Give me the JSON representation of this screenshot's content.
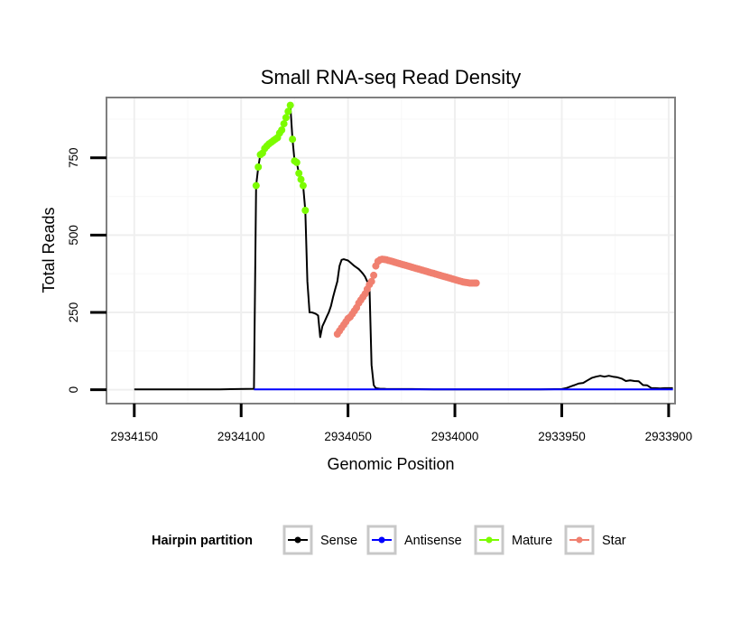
{
  "chart_data": {
    "type": "line",
    "title": "Small RNA-seq Read Density",
    "xlabel": "Genomic Position",
    "ylabel": "Total Reads",
    "xlim": [
      2934163,
      2933897
    ],
    "ylim": [
      -45,
      945
    ],
    "x_reversed": true,
    "grid": true,
    "x_ticks": [
      {
        "value": 2934150,
        "label": "2934150"
      },
      {
        "value": 2934100,
        "label": "2934100"
      },
      {
        "value": 2934050,
        "label": "2934050"
      },
      {
        "value": 2934000,
        "label": "2934000"
      },
      {
        "value": 2933950,
        "label": "2933950"
      },
      {
        "value": 2933900,
        "label": "2933900"
      }
    ],
    "y_ticks": [
      {
        "value": 0,
        "label": "0"
      },
      {
        "value": 250,
        "label": "250"
      },
      {
        "value": 500,
        "label": "500"
      },
      {
        "value": 750,
        "label": "750"
      }
    ],
    "legend": {
      "title": "Hairpin partition",
      "position": "bottom",
      "items": [
        {
          "label": "Sense",
          "color": "#000000"
        },
        {
          "label": "Antisense",
          "color": "#0000ff"
        },
        {
          "label": "Mature",
          "color": "#7cfc00"
        },
        {
          "label": "Star",
          "color": "#f08070"
        }
      ]
    },
    "series": [
      {
        "name": "Sense",
        "color": "#000000",
        "markers": false,
        "x": [
          2934150,
          2934130,
          2934110,
          2934094,
          2934093,
          2934092,
          2934091,
          2934090,
          2934089,
          2934088,
          2934087,
          2934086,
          2934085,
          2934084,
          2934083,
          2934082,
          2934081,
          2934080,
          2934079,
          2934078,
          2934077,
          2934076,
          2934075,
          2934074,
          2934073,
          2934072,
          2934071,
          2934070,
          2934069,
          2934068,
          2934067,
          2934066,
          2934065,
          2934064,
          2934063,
          2934062,
          2934061,
          2934060,
          2934059,
          2934058,
          2934057,
          2934056,
          2934055,
          2934054,
          2934053,
          2934052,
          2934051,
          2934050,
          2934049,
          2934048,
          2934047,
          2934046,
          2934045,
          2934044,
          2934043,
          2934042,
          2934041,
          2934040,
          2934039,
          2934038,
          2934037,
          2934036,
          2934035,
          2934034,
          2934033,
          2934032,
          2934031,
          2934030,
          2934029,
          2934028,
          2934027,
          2934026,
          2934025,
          2934024,
          2934023,
          2934022,
          2934020,
          2934010,
          2934000,
          2933990,
          2933980,
          2933970,
          2933960,
          2933950,
          2933948,
          2933946,
          2933944,
          2933942,
          2933940,
          2933938,
          2933936,
          2933934,
          2933932,
          2933930,
          2933928,
          2933926,
          2933924,
          2933922,
          2933920,
          2933918,
          2933916,
          2933914,
          2933912,
          2933910,
          2933908,
          2933906,
          2933904,
          2933902,
          2933900,
          2933898
        ],
        "y": [
          1,
          1,
          1,
          3,
          660,
          720,
          760,
          765,
          780,
          788,
          795,
          800,
          805,
          810,
          815,
          830,
          840,
          860,
          880,
          900,
          920,
          810,
          740,
          735,
          700,
          680,
          660,
          580,
          350,
          250,
          250,
          248,
          245,
          240,
          170,
          205,
          220,
          235,
          250,
          270,
          300,
          325,
          350,
          400,
          420,
          422,
          420,
          418,
          412,
          406,
          400,
          395,
          390,
          383,
          375,
          365,
          350,
          345,
          80,
          15,
          5,
          4,
          3,
          3,
          3,
          2,
          2,
          2,
          2,
          2,
          2,
          2,
          2,
          2,
          2,
          2,
          2,
          1,
          1,
          1,
          1,
          1,
          1,
          2,
          5,
          10,
          15,
          20,
          22,
          30,
          38,
          42,
          45,
          42,
          45,
          42,
          40,
          36,
          28,
          30,
          28,
          27,
          15,
          14,
          5,
          5,
          4,
          5,
          5,
          5
        ]
      },
      {
        "name": "Antisense",
        "color": "#0000ff",
        "markers": false,
        "x": [
          2934094,
          2934080,
          2934060,
          2934040,
          2934020,
          2934000,
          2933980,
          2933960,
          2933940,
          2933920,
          2933898
        ],
        "y": [
          1,
          1,
          1,
          1,
          1,
          1,
          1,
          1,
          1,
          1,
          1
        ]
      },
      {
        "name": "Mature",
        "color": "#7cfc00",
        "markers": true,
        "x": [
          2934093,
          2934092,
          2934091,
          2934090,
          2934089,
          2934088,
          2934087,
          2934086,
          2934085,
          2934084,
          2934083,
          2934082,
          2934081,
          2934080,
          2934079,
          2934078,
          2934077,
          2934076,
          2934075,
          2934074,
          2934073,
          2934072,
          2934071,
          2934070
        ],
        "y": [
          660,
          720,
          760,
          765,
          780,
          788,
          795,
          800,
          805,
          810,
          815,
          830,
          840,
          860,
          880,
          900,
          920,
          810,
          740,
          735,
          700,
          680,
          660,
          580
        ]
      },
      {
        "name": "Star",
        "color": "#f08070",
        "markers": true,
        "x": [
          2934055,
          2934054,
          2934053,
          2934052,
          2934051,
          2934050,
          2934049,
          2934048,
          2934047,
          2934046,
          2934045,
          2934044,
          2934043,
          2934042,
          2934041,
          2934040,
          2934039,
          2934038,
          2934037,
          2934036,
          2934035,
          2934034,
          2934033,
          2934032,
          2934031,
          2934030,
          2934029,
          2934028,
          2934027,
          2934026,
          2934025,
          2934024,
          2934023,
          2934022,
          2934021,
          2934020,
          2934019,
          2934018,
          2934017,
          2934016,
          2934015,
          2934014,
          2934013,
          2934012,
          2934011,
          2934010,
          2934009,
          2934008,
          2934007,
          2934006,
          2934005,
          2934004,
          2934003,
          2934002,
          2934001,
          2934000,
          2933999,
          2933998,
          2933997,
          2933996,
          2933995,
          2933994,
          2933993,
          2933992,
          2933991,
          2933990
        ],
        "y": [
          180,
          190,
          200,
          210,
          220,
          230,
          235,
          245,
          255,
          265,
          280,
          290,
          300,
          310,
          325,
          340,
          350,
          370,
          400,
          415,
          420,
          422,
          421,
          420,
          418,
          416,
          414,
          412,
          410,
          408,
          406,
          404,
          402,
          400,
          398,
          396,
          394,
          392,
          390,
          388,
          386,
          384,
          382,
          380,
          378,
          376,
          374,
          372,
          370,
          368,
          366,
          364,
          362,
          360,
          358,
          356,
          354,
          352,
          350,
          348,
          347,
          346,
          345,
          345,
          345,
          345
        ]
      }
    ]
  }
}
